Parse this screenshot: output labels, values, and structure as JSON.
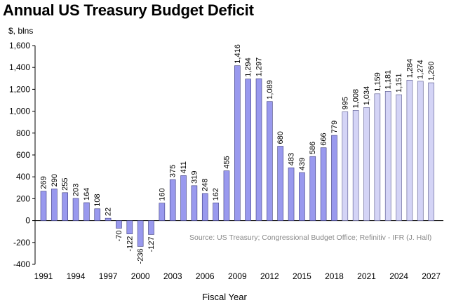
{
  "chart_data": {
    "type": "bar",
    "title": "Annual US Treasury Budget Deficit",
    "ylabel": "$, blns",
    "xlabel": "Fiscal Year",
    "source": "Source: US Treasury; Congressional Budget Office; Refinitiv - IFR (J. Hall)",
    "ylim": [
      -400,
      1600
    ],
    "yticks": [
      -400,
      -200,
      0,
      200,
      400,
      600,
      800,
      1000,
      1200,
      1400,
      1600
    ],
    "ytick_labels": [
      "-400",
      "-200",
      "0",
      "200",
      "400",
      "600",
      "800",
      "1,000",
      "1,200",
      "1,400",
      "1,600"
    ],
    "grid": false,
    "legend": "none",
    "categories": [
      "1991",
      "1992",
      "1993",
      "1994",
      "1995",
      "1996",
      "1997",
      "1998",
      "1999",
      "2000",
      "2001",
      "2002",
      "2003",
      "2004",
      "2005",
      "2006",
      "2007",
      "2008",
      "2009",
      "2010",
      "2011",
      "2012",
      "2013",
      "2014",
      "2015",
      "2016",
      "2017",
      "2018",
      "2019",
      "2020",
      "2021",
      "2022",
      "2023",
      "2024",
      "2025",
      "2026",
      "2027"
    ],
    "x_tick_labels": [
      "1991",
      "1994",
      "1997",
      "2000",
      "2003",
      "2006",
      "2009",
      "2012",
      "2015",
      "2018",
      "2021",
      "2024",
      "2027"
    ],
    "values": [
      269,
      290,
      255,
      203,
      164,
      108,
      22,
      -70,
      -122,
      -236,
      -127,
      160,
      375,
      411,
      319,
      248,
      162,
      455,
      1416,
      1294,
      1297,
      1089,
      680,
      483,
      439,
      586,
      666,
      779,
      995,
      1008,
      1034,
      1159,
      1181,
      1151,
      1284,
      1274,
      1260
    ],
    "value_labels": [
      "269",
      "290",
      "255",
      "203",
      "164",
      "108",
      "22",
      "-70",
      "-122",
      "-236",
      "-127",
      "160",
      "375",
      "411",
      "319",
      "248",
      "162",
      "455",
      "1,416",
      "1,294",
      "1,297",
      "1,089",
      "680",
      "483",
      "439",
      "586",
      "666",
      "779",
      "995",
      "1,008",
      "1,034",
      "1,159",
      "1,181",
      "1,151",
      "1,284",
      "1,274",
      "1,260"
    ],
    "first_projected_index": 28,
    "colors": {
      "actual_fill": "#9999ee",
      "actual_stroke": "#3a3a7a",
      "projected_fill": "#d4d4f6",
      "projected_stroke": "#55558a",
      "axis": "#000000"
    }
  }
}
